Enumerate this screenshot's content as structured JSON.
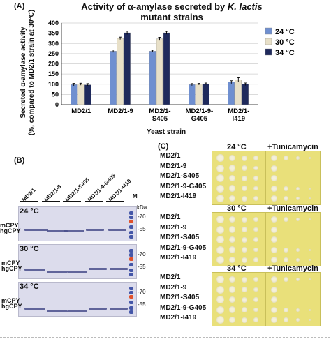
{
  "panelA": {
    "letter": "(A)",
    "title_part1": "Activity of ",
    "title_alpha": "α",
    "title_part2": "-amylase secreted by ",
    "title_species": "K. lactis",
    "title_line2": "mutant strains",
    "ylabel_line1": "Secreted α-amylase activity",
    "ylabel_line2": "(%, compared to MD2/1 strain at 30°C)",
    "xlabel": "Yeast strain"
  },
  "chart_data": {
    "type": "bar",
    "categories": [
      "MD2/1",
      "MD2/1-9",
      "MD2/1-S405",
      "MD2/1-9-G405",
      "MD2/1-I419"
    ],
    "category_lines": [
      [
        "MD2/1"
      ],
      [
        "MD2/1-9"
      ],
      [
        "MD2/1-",
        "S405"
      ],
      [
        "MD2/1-9-",
        "G405"
      ],
      [
        "MD2/1-",
        "I419"
      ]
    ],
    "series": [
      {
        "name": "24 °C",
        "values": [
          98,
          262,
          262,
          98,
          110
        ],
        "errors": [
          6,
          6,
          5,
          5,
          7
        ],
        "color": "#6f8fd0"
      },
      {
        "name": "30 °C",
        "values": [
          100,
          325,
          322,
          100,
          122
        ],
        "errors": [
          5,
          6,
          8,
          4,
          10
        ],
        "color": "#e8e0c8"
      },
      {
        "name": "34 °C",
        "values": [
          97,
          352,
          352,
          102,
          100
        ],
        "errors": [
          6,
          8,
          7,
          4,
          6
        ],
        "color": "#1f2a5c"
      }
    ],
    "yticks": [
      0,
      50,
      100,
      150,
      200,
      250,
      300,
      350,
      400
    ],
    "ylim": [
      0,
      400
    ],
    "legend": "right"
  },
  "panelB": {
    "letter": "(B)",
    "lanes": [
      "MD2/1",
      "MD2/1-9",
      "MD2/1-S405",
      "MD2/1-9-G405",
      "MD2/1-I419"
    ],
    "marker_lane": "M",
    "kda": "kDa",
    "gels": [
      {
        "temp": "24 °C",
        "m70": "-70",
        "m55": "-55"
      },
      {
        "temp": "30 °C",
        "m70": "-70",
        "m55": "-55"
      },
      {
        "temp": "34 °C",
        "m70": "-70",
        "m55": "-55"
      }
    ],
    "band_label_top": "mCPY",
    "band_label_bottom": "hgCPY"
  },
  "panelC": {
    "letter": "(C)",
    "plus_label": "+Tunicamycin",
    "strains": [
      "MD2/1",
      "MD2/1-9",
      "MD2/1-S405",
      "MD2/1-9-G405",
      "MD2/1-I419"
    ],
    "temps": [
      "24 °C",
      "30 °C",
      "34 °C"
    ]
  },
  "caption_partial": "(caption text partially cut off at bottom edge)"
}
